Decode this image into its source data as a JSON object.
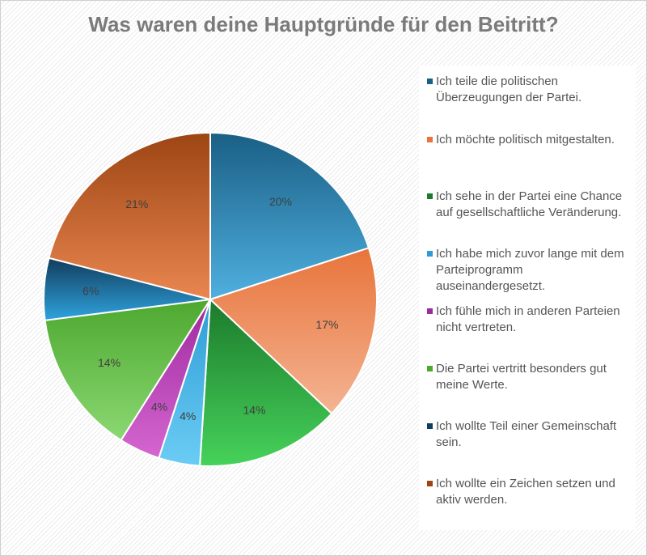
{
  "chart_data": {
    "type": "pie",
    "title": "Was waren deine Hauptgründe für den Beitritt?",
    "legend_position": "right",
    "slices": [
      {
        "label": "Ich teile die politischen Überzeugungen der Partei.",
        "value": 20,
        "display": "20%",
        "color_dark": "#1a5f85",
        "color_light": "#4fb0e0"
      },
      {
        "label": "Ich möchte politisch mitgestalten.",
        "value": 17,
        "display": "17%",
        "color_dark": "#e8743b",
        "color_light": "#f4b493"
      },
      {
        "label": "Ich sehe in der Partei eine Chance auf gesellschaftliche Veränderung.",
        "value": 14,
        "display": "14%",
        "color_dark": "#1c7a2c",
        "color_light": "#46d25a"
      },
      {
        "label": "Ich habe mich zuvor lange mit dem Parteiprogramm auseinandergesetzt.",
        "value": 4,
        "display": "4%",
        "color_dark": "#2d9bd6",
        "color_light": "#6bcdf4"
      },
      {
        "label": "Ich fühle mich in anderen Parteien nicht vertreten.",
        "value": 4,
        "display": "4%",
        "color_dark": "#9e2a9f",
        "color_light": "#d566d0"
      },
      {
        "label": "Die Partei vertritt besonders gut meine Werte.",
        "value": 14,
        "display": "14%",
        "color_dark": "#4da82f",
        "color_light": "#8ad872"
      },
      {
        "label": "Ich wollte Teil einer Gemeinschaft sein.",
        "value": 6,
        "display": "6%",
        "color_dark": "#123c5c",
        "color_light": "#2ea3de"
      },
      {
        "label": "Ich wollte ein Zeichen setzen und aktiv werden.",
        "value": 21,
        "display": "21%",
        "color_dark": "#9c4513",
        "color_light": "#ea8650"
      }
    ]
  }
}
